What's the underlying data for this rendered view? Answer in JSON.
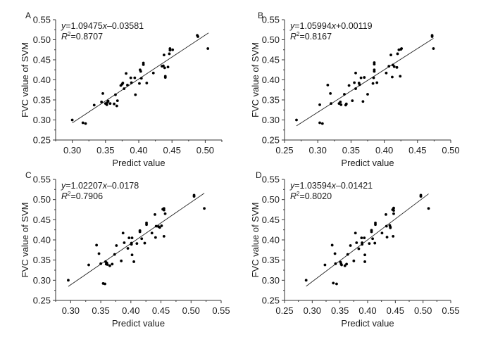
{
  "chart_data": [
    {
      "type": "scatter",
      "panel": "A",
      "xlabel": "Predict value",
      "ylabel": "FVC value of SVM",
      "xlim": [
        0.275,
        0.525
      ],
      "ylim": [
        0.25,
        0.55
      ],
      "xticks": [
        "0.30",
        "0.35",
        "0.40",
        "0.45",
        "0.50"
      ],
      "xtick_values": [
        0.3,
        0.35,
        0.4,
        0.45,
        0.5
      ],
      "yticks": [
        "0.25",
        "0.30",
        "0.35",
        "0.40",
        "0.45",
        "0.50",
        "0.55"
      ],
      "ytick_values": [
        0.25,
        0.3,
        0.35,
        0.4,
        0.45,
        0.5,
        0.55
      ],
      "equation": {
        "y": "y",
        "rest": "=1.09475",
        "x": "x",
        "tail": "–0.03581"
      },
      "r2": {
        "r": "R",
        "sup": "2",
        "rest": "=0.8707"
      },
      "fit": {
        "slope": 1.09475,
        "intercept": -0.03581,
        "x_range": [
          0.3,
          0.505
        ]
      },
      "points": [
        [
          0.3,
          0.3
        ],
        [
          0.316,
          0.293
        ],
        [
          0.32,
          0.291
        ],
        [
          0.333,
          0.337
        ],
        [
          0.344,
          0.345
        ],
        [
          0.346,
          0.366
        ],
        [
          0.35,
          0.341
        ],
        [
          0.352,
          0.338
        ],
        [
          0.353,
          0.344
        ],
        [
          0.354,
          0.347
        ],
        [
          0.357,
          0.341
        ],
        [
          0.363,
          0.34
        ],
        [
          0.365,
          0.363
        ],
        [
          0.367,
          0.335
        ],
        [
          0.368,
          0.348
        ],
        [
          0.373,
          0.386
        ],
        [
          0.375,
          0.389
        ],
        [
          0.376,
          0.392
        ],
        [
          0.378,
          0.378
        ],
        [
          0.381,
          0.416
        ],
        [
          0.383,
          0.387
        ],
        [
          0.388,
          0.405
        ],
        [
          0.389,
          0.393
        ],
        [
          0.394,
          0.405
        ],
        [
          0.395,
          0.363
        ],
        [
          0.401,
          0.391
        ],
        [
          0.402,
          0.425
        ],
        [
          0.403,
          0.421
        ],
        [
          0.404,
          0.404
        ],
        [
          0.407,
          0.442
        ],
        [
          0.407,
          0.438
        ],
        [
          0.412,
          0.392
        ],
        [
          0.422,
          0.417
        ],
        [
          0.435,
          0.434
        ],
        [
          0.437,
          0.435
        ],
        [
          0.438,
          0.462
        ],
        [
          0.439,
          0.43
        ],
        [
          0.44,
          0.409
        ],
        [
          0.44,
          0.406
        ],
        [
          0.444,
          0.432
        ],
        [
          0.446,
          0.465
        ],
        [
          0.447,
          0.478
        ],
        [
          0.447,
          0.474
        ],
        [
          0.451,
          0.475
        ],
        [
          0.488,
          0.511
        ],
        [
          0.489,
          0.508
        ],
        [
          0.504,
          0.478
        ]
      ]
    },
    {
      "type": "scatter",
      "panel": "B",
      "xlabel": "Predict value",
      "ylabel": "FVC value of SVM",
      "xlim": [
        0.25,
        0.5
      ],
      "ylim": [
        0.25,
        0.55
      ],
      "xticks": [
        "0.25",
        "0.30",
        "0.35",
        "0.40",
        "0.45",
        "0.50"
      ],
      "xtick_values": [
        0.25,
        0.3,
        0.35,
        0.4,
        0.45,
        0.5
      ],
      "yticks": [
        "0.25",
        "0.30",
        "0.35",
        "0.40",
        "0.45",
        "0.50",
        "0.55"
      ],
      "ytick_values": [
        0.25,
        0.3,
        0.35,
        0.4,
        0.45,
        0.5,
        0.55
      ],
      "equation": {
        "y": "y",
        "rest": "=1.05994",
        "x": "x",
        "tail": "+0.00119"
      },
      "r2": {
        "r": "R",
        "sup": "2",
        "rest": "=0.8167"
      },
      "fit": {
        "slope": 1.05994,
        "intercept": 0.00119,
        "x_range": [
          0.268,
          0.474
        ]
      },
      "points": [
        [
          0.268,
          0.3
        ],
        [
          0.303,
          0.338
        ],
        [
          0.303,
          0.293
        ],
        [
          0.307,
          0.291
        ],
        [
          0.315,
          0.387
        ],
        [
          0.319,
          0.366
        ],
        [
          0.32,
          0.341
        ],
        [
          0.332,
          0.341
        ],
        [
          0.334,
          0.345
        ],
        [
          0.335,
          0.338
        ],
        [
          0.34,
          0.364
        ],
        [
          0.342,
          0.337
        ],
        [
          0.343,
          0.34
        ],
        [
          0.347,
          0.386
        ],
        [
          0.352,
          0.348
        ],
        [
          0.355,
          0.393
        ],
        [
          0.357,
          0.417
        ],
        [
          0.357,
          0.378
        ],
        [
          0.362,
          0.392
        ],
        [
          0.363,
          0.388
        ],
        [
          0.365,
          0.405
        ],
        [
          0.368,
          0.346
        ],
        [
          0.37,
          0.406
        ],
        [
          0.375,
          0.364
        ],
        [
          0.383,
          0.391
        ],
        [
          0.384,
          0.405
        ],
        [
          0.385,
          0.443
        ],
        [
          0.385,
          0.439
        ],
        [
          0.385,
          0.425
        ],
        [
          0.385,
          0.421
        ],
        [
          0.389,
          0.393
        ],
        [
          0.403,
          0.417
        ],
        [
          0.407,
          0.434
        ],
        [
          0.41,
          0.462
        ],
        [
          0.412,
          0.407
        ],
        [
          0.413,
          0.437
        ],
        [
          0.415,
          0.433
        ],
        [
          0.419,
          0.431
        ],
        [
          0.42,
          0.465
        ],
        [
          0.422,
          0.475
        ],
        [
          0.424,
          0.409
        ],
        [
          0.425,
          0.476
        ],
        [
          0.426,
          0.478
        ],
        [
          0.472,
          0.511
        ],
        [
          0.472,
          0.508
        ],
        [
          0.474,
          0.478
        ]
      ]
    },
    {
      "type": "scatter",
      "panel": "C",
      "xlabel": "Predict value",
      "ylabel": "FVC value of SVM",
      "xlim": [
        0.275,
        0.55
      ],
      "ylim": [
        0.25,
        0.55
      ],
      "xticks": [
        "0.30",
        "0.35",
        "0.40",
        "0.45",
        "0.50",
        "0.55"
      ],
      "xtick_values": [
        0.3,
        0.35,
        0.4,
        0.45,
        0.5,
        0.55
      ],
      "yticks": [
        "0.25",
        "0.30",
        "0.35",
        "0.40",
        "0.45",
        "0.50",
        "0.55"
      ],
      "ytick_values": [
        0.25,
        0.3,
        0.35,
        0.4,
        0.45,
        0.5,
        0.55
      ],
      "equation": {
        "y": "y",
        "rest": "=1.02207",
        "x": "x",
        "tail": "–0.0178"
      },
      "r2": {
        "r": "R",
        "sup": "2",
        "rest": "=0.7906"
      },
      "fit": {
        "slope": 1.02207,
        "intercept": -0.0178,
        "x_range": [
          0.296,
          0.522
        ]
      },
      "points": [
        [
          0.296,
          0.3
        ],
        [
          0.33,
          0.338
        ],
        [
          0.343,
          0.387
        ],
        [
          0.347,
          0.366
        ],
        [
          0.35,
          0.341
        ],
        [
          0.354,
          0.292
        ],
        [
          0.357,
          0.291
        ],
        [
          0.358,
          0.346
        ],
        [
          0.359,
          0.34
        ],
        [
          0.36,
          0.343
        ],
        [
          0.361,
          0.339
        ],
        [
          0.365,
          0.336
        ],
        [
          0.369,
          0.34
        ],
        [
          0.373,
          0.364
        ],
        [
          0.376,
          0.386
        ],
        [
          0.384,
          0.348
        ],
        [
          0.387,
          0.417
        ],
        [
          0.389,
          0.393
        ],
        [
          0.395,
          0.379
        ],
        [
          0.397,
          0.405
        ],
        [
          0.401,
          0.389
        ],
        [
          0.401,
          0.392
        ],
        [
          0.402,
          0.405
        ],
        [
          0.402,
          0.363
        ],
        [
          0.405,
          0.346
        ],
        [
          0.41,
          0.391
        ],
        [
          0.415,
          0.423
        ],
        [
          0.415,
          0.42
        ],
        [
          0.418,
          0.403
        ],
        [
          0.423,
          0.392
        ],
        [
          0.426,
          0.442
        ],
        [
          0.426,
          0.438
        ],
        [
          0.435,
          0.417
        ],
        [
          0.44,
          0.463
        ],
        [
          0.441,
          0.406
        ],
        [
          0.442,
          0.434
        ],
        [
          0.446,
          0.433
        ],
        [
          0.448,
          0.431
        ],
        [
          0.451,
          0.435
        ],
        [
          0.453,
          0.476
        ],
        [
          0.455,
          0.478
        ],
        [
          0.455,
          0.474
        ],
        [
          0.455,
          0.409
        ],
        [
          0.457,
          0.465
        ],
        [
          0.505,
          0.511
        ],
        [
          0.505,
          0.508
        ],
        [
          0.522,
          0.478
        ]
      ]
    },
    {
      "type": "scatter",
      "panel": "D",
      "xlabel": "Predict value",
      "ylabel": "FVC value of SVM",
      "xlim": [
        0.25,
        0.55
      ],
      "ylim": [
        0.25,
        0.55
      ],
      "xticks": [
        "0.25",
        "0.30",
        "0.35",
        "0.40",
        "0.45",
        "0.50",
        "0.55"
      ],
      "xtick_values": [
        0.25,
        0.3,
        0.35,
        0.4,
        0.45,
        0.5,
        0.55
      ],
      "yticks": [
        "0.25",
        "0.30",
        "0.35",
        "0.40",
        "0.45",
        "0.50",
        "0.55"
      ],
      "ytick_values": [
        0.25,
        0.3,
        0.35,
        0.4,
        0.45,
        0.5,
        0.55
      ],
      "equation": {
        "y": "y",
        "rest": "=1.03594",
        "x": "x",
        "tail": "–0.01421"
      },
      "r2": {
        "r": "R",
        "sup": "2",
        "rest": "=0.8020"
      },
      "fit": {
        "slope": 1.03594,
        "intercept": -0.01421,
        "x_range": [
          0.289,
          0.51
        ]
      },
      "points": [
        [
          0.289,
          0.3
        ],
        [
          0.323,
          0.338
        ],
        [
          0.336,
          0.387
        ],
        [
          0.338,
          0.293
        ],
        [
          0.341,
          0.366
        ],
        [
          0.342,
          0.341
        ],
        [
          0.344,
          0.291
        ],
        [
          0.351,
          0.345
        ],
        [
          0.352,
          0.341
        ],
        [
          0.353,
          0.338
        ],
        [
          0.359,
          0.336
        ],
        [
          0.362,
          0.34
        ],
        [
          0.364,
          0.364
        ],
        [
          0.369,
          0.386
        ],
        [
          0.375,
          0.348
        ],
        [
          0.378,
          0.417
        ],
        [
          0.38,
          0.393
        ],
        [
          0.384,
          0.378
        ],
        [
          0.389,
          0.405
        ],
        [
          0.39,
          0.393
        ],
        [
          0.39,
          0.389
        ],
        [
          0.394,
          0.405
        ],
        [
          0.395,
          0.363
        ],
        [
          0.395,
          0.346
        ],
        [
          0.403,
          0.391
        ],
        [
          0.407,
          0.424
        ],
        [
          0.407,
          0.42
        ],
        [
          0.409,
          0.403
        ],
        [
          0.413,
          0.392
        ],
        [
          0.414,
          0.442
        ],
        [
          0.414,
          0.438
        ],
        [
          0.426,
          0.417
        ],
        [
          0.433,
          0.463
        ],
        [
          0.434,
          0.434
        ],
        [
          0.435,
          0.407
        ],
        [
          0.44,
          0.436
        ],
        [
          0.441,
          0.432
        ],
        [
          0.441,
          0.43
        ],
        [
          0.445,
          0.475
        ],
        [
          0.446,
          0.409
        ],
        [
          0.447,
          0.479
        ],
        [
          0.447,
          0.473
        ],
        [
          0.447,
          0.465
        ],
        [
          0.496,
          0.511
        ],
        [
          0.496,
          0.508
        ],
        [
          0.51,
          0.478
        ]
      ]
    }
  ]
}
